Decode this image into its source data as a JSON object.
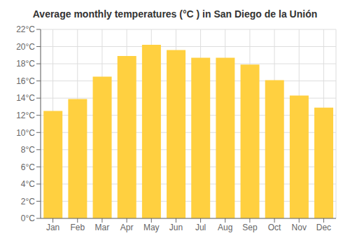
{
  "chart_data": {
    "type": "bar",
    "title": "Average monthly temperatures (°C ) in San Diego de la Unión",
    "categories": [
      "Jan",
      "Feb",
      "Mar",
      "Apr",
      "May",
      "Jun",
      "Jul",
      "Aug",
      "Sep",
      "Oct",
      "Nov",
      "Dec"
    ],
    "values": [
      12.5,
      13.9,
      16.5,
      18.9,
      20.2,
      19.6,
      18.7,
      18.7,
      17.9,
      16.1,
      14.3,
      12.9
    ],
    "color": "#FFD040",
    "ylim": [
      0,
      22
    ],
    "yticks": [
      {
        "value": 0,
        "label": "0°C"
      },
      {
        "value": 2,
        "label": "2°C"
      },
      {
        "value": 4,
        "label": "4°C"
      },
      {
        "value": 6,
        "label": "6°C"
      },
      {
        "value": 8,
        "label": "8°C"
      },
      {
        "value": 10,
        "label": "10°C"
      },
      {
        "value": 12,
        "label": "12°C"
      },
      {
        "value": 14,
        "label": "14°C"
      },
      {
        "value": 16,
        "label": "16°C"
      },
      {
        "value": 18,
        "label": "18°C"
      },
      {
        "value": 20,
        "label": "20°C"
      },
      {
        "value": 22,
        "label": "22°C"
      }
    ],
    "grid": true
  }
}
